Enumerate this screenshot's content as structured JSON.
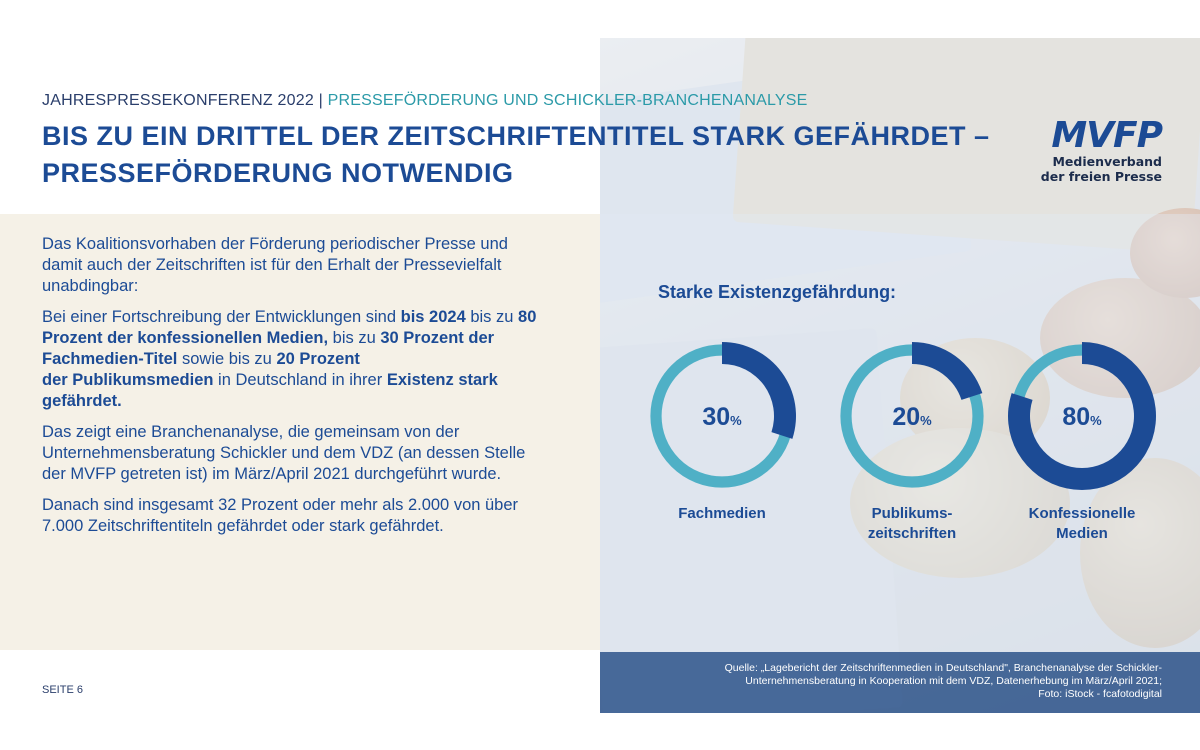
{
  "header": {
    "subtitle_main": "JAHRESPRESSEKONFERENZ 2022 |",
    "subtitle_accent": "PRESSEFÖRDERUNG UND SCHICKLER-BRANCHENANALYSE",
    "title_line1": "BIS ZU EIN DRITTEL DER ZEITSCHRIFTENTITEL STARK GEFÄHRDET –",
    "title_line2": "PRESSEFÖRDERUNG NOTWENDIG"
  },
  "logo": {
    "mark": "MVFP",
    "line1": "Medienverband",
    "line2": "der freien Presse"
  },
  "body": {
    "p1": "Das Koalitionsvorhaben der Förderung periodischer Presse und damit auch der Zeitschriften ist für den Erhalt der Pressevielfalt unabdingbar:",
    "p2": {
      "t1": "Bei einer Fortschreibung der Entwicklungen sind ",
      "b1": "bis 2024",
      "t2": " bis zu ",
      "b2": "80 Prozent der konfessionellen Medien,",
      "t3": " bis zu ",
      "b3": "30 Prozent der Fachmedien-Titel",
      "t4": " sowie bis zu ",
      "b4": "20 Prozent",
      "b5": "der Publikumsmedien",
      "t5": " in Deutschland in ihrer ",
      "b6": "Existenz stark gefährdet."
    },
    "p3": "Das zeigt eine Branchenanalyse, die gemeinsam von der Unternehmensberatung Schickler und dem VDZ (an dessen Stelle der MVFP getreten ist) im März/April 2021 durchgeführt wurde.",
    "p4": "Danach sind insgesamt 32 Prozent oder mehr als 2.000 von über 7.000 Zeitschriftentiteln gefährdet oder stark gefährdet."
  },
  "footer": {
    "page": "SEITE 6",
    "source_line1": "Quelle: „Lagebericht der Zeitschriftenmedien in Deutschland\", Branchenanalyse der Schickler-",
    "source_line2": "Unternehmensberatung in Kooperation mit dem VDZ, Datenerhebung im März/April 2021;",
    "source_line3": "Foto: iStock - fcafotodigital"
  },
  "colors": {
    "primary": "#1c4b95",
    "ring_track": "#4fb0c6",
    "text_panel": "#f5f1e7"
  },
  "chart_data": {
    "type": "donut",
    "title": "Starke Existenzgefährdung:",
    "unit": "%",
    "series": [
      {
        "name": "Fachmedien",
        "label_lines": [
          "Fachmedien"
        ],
        "value": 30
      },
      {
        "name": "Publikumszeitschriften",
        "label_lines": [
          "Publikums-",
          "zeitschriften"
        ],
        "value": 20
      },
      {
        "name": "Konfessionelle Medien",
        "label_lines": [
          "Konfessionelle",
          "Medien"
        ],
        "value": 80
      }
    ]
  }
}
